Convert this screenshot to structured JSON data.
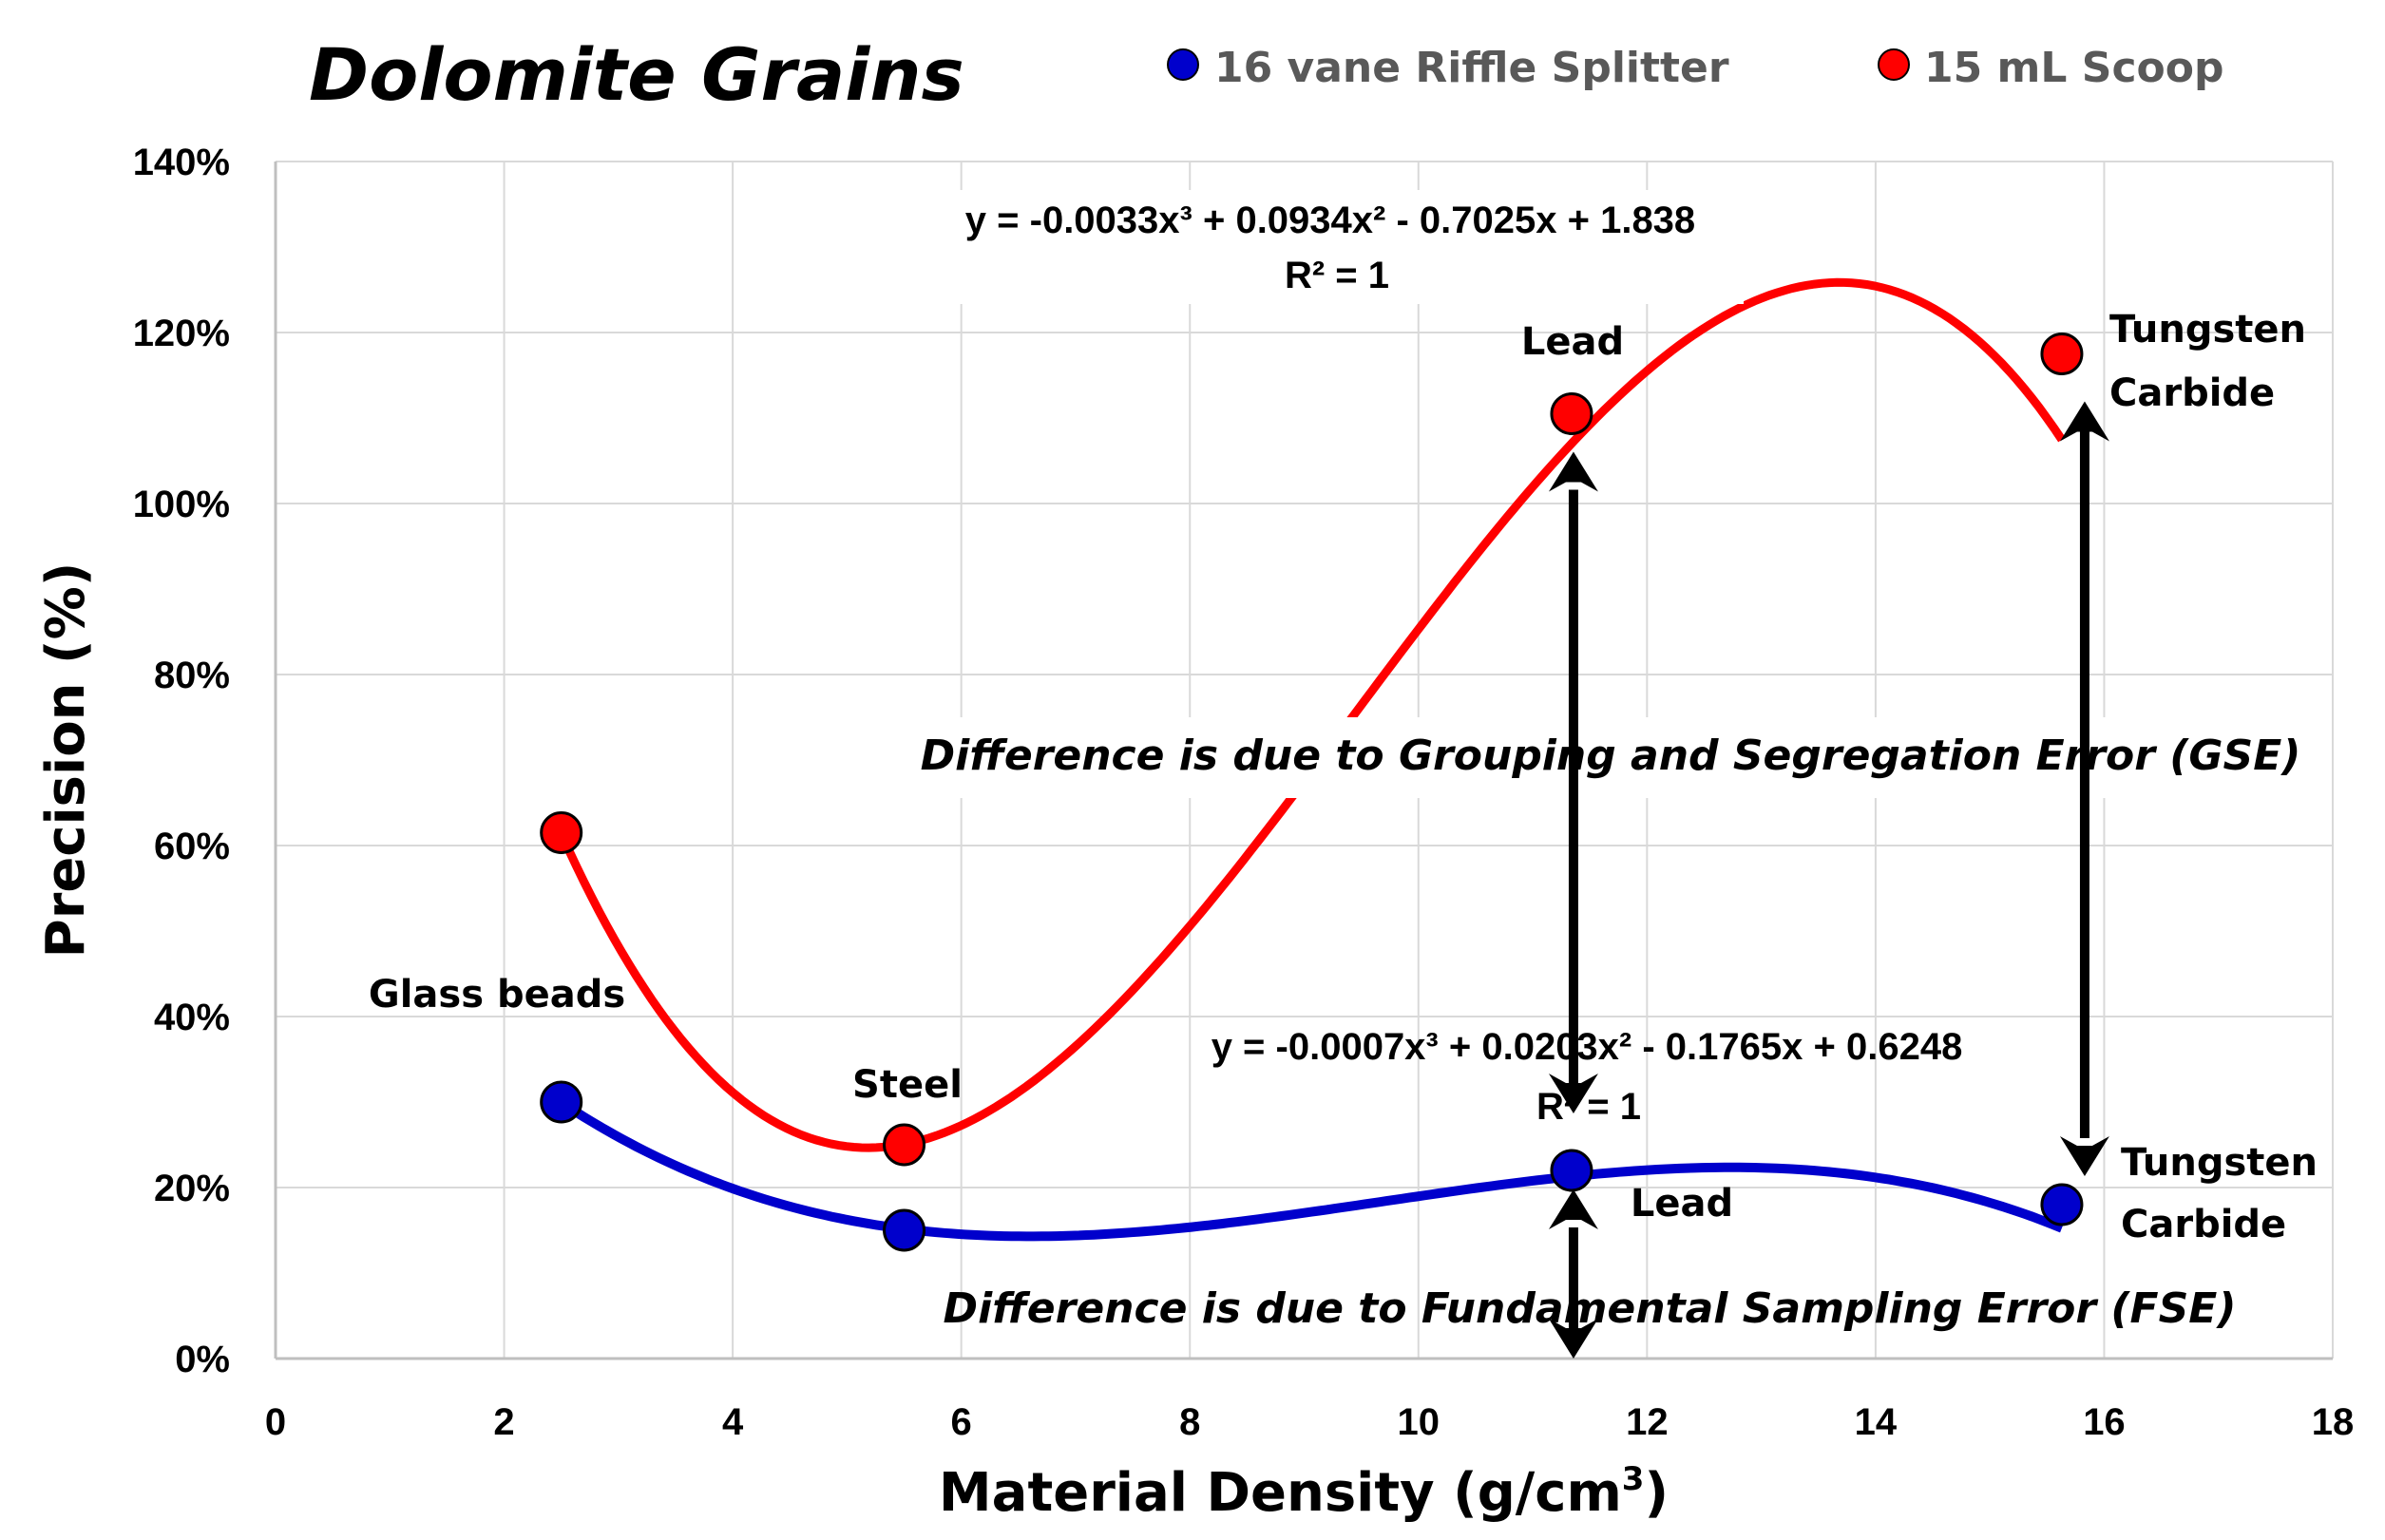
{
  "chart_data": {
    "type": "scatter",
    "title": "Dolomite Grains",
    "xlabel": "Material Density (g/cm",
    "xlabel_sup": "3",
    "xlabel_close": ")",
    "ylabel": "Precision (%)",
    "xlim": [
      0,
      18
    ],
    "ylim": [
      0,
      1.4
    ],
    "xticks": [
      0,
      2,
      4,
      6,
      8,
      10,
      12,
      14,
      16,
      18
    ],
    "xtick_labels": [
      "0",
      "2",
      "4",
      "6",
      "8",
      "10",
      "12",
      "14",
      "16",
      "18"
    ],
    "yticks": [
      0,
      0.2,
      0.4,
      0.6,
      0.8,
      1.0,
      1.2,
      1.4
    ],
    "ytick_labels": [
      "0%",
      "20%",
      "40%",
      "60%",
      "80%",
      "100%",
      "120%",
      "140%"
    ],
    "grid": true,
    "legend_position": "top",
    "series": [
      {
        "name": "16 vane Riffle Splitter",
        "color": "#0000cc",
        "x": [
          2.5,
          5.5,
          11.34,
          15.63
        ],
        "y": [
          0.3,
          0.15,
          0.22,
          0.18
        ],
        "trendline": {
          "type": "poly3",
          "coefficients": [
            -0.0007,
            0.0203,
            -0.1765,
            0.6248
          ],
          "equation_label": "y = -0.0007x³ + 0.0203x² - 0.1765x + 0.6248",
          "r2_label": "R² = 1"
        }
      },
      {
        "name": "15 mL Scoop",
        "color": "#ff0000",
        "x": [
          2.5,
          5.5,
          11.34,
          15.63
        ],
        "y": [
          0.615,
          0.25,
          1.105,
          1.175
        ],
        "trendline": {
          "type": "poly3",
          "coefficients": [
            -0.0033,
            0.0934,
            -0.7025,
            1.838
          ],
          "equation_label": "y = -0.0033x³ + 0.0934x² - 0.7025x + 1.838",
          "r2_label": "R² = 1"
        }
      }
    ],
    "point_labels": {
      "glass_beads": "Glass beads",
      "steel": "Steel",
      "lead_top": "Lead",
      "lead_bottom": "Lead",
      "tungsten_top_1": "Tungsten",
      "tungsten_top_2": "Carbide",
      "tungsten_bottom_1": "Tungsten",
      "tungsten_bottom_2": "Carbide"
    },
    "annotations": {
      "gse": "Difference is due to Grouping and Segregation Error (GSE)",
      "fse": "Difference is due to Fundamental Sampling Error (FSE)"
    }
  }
}
